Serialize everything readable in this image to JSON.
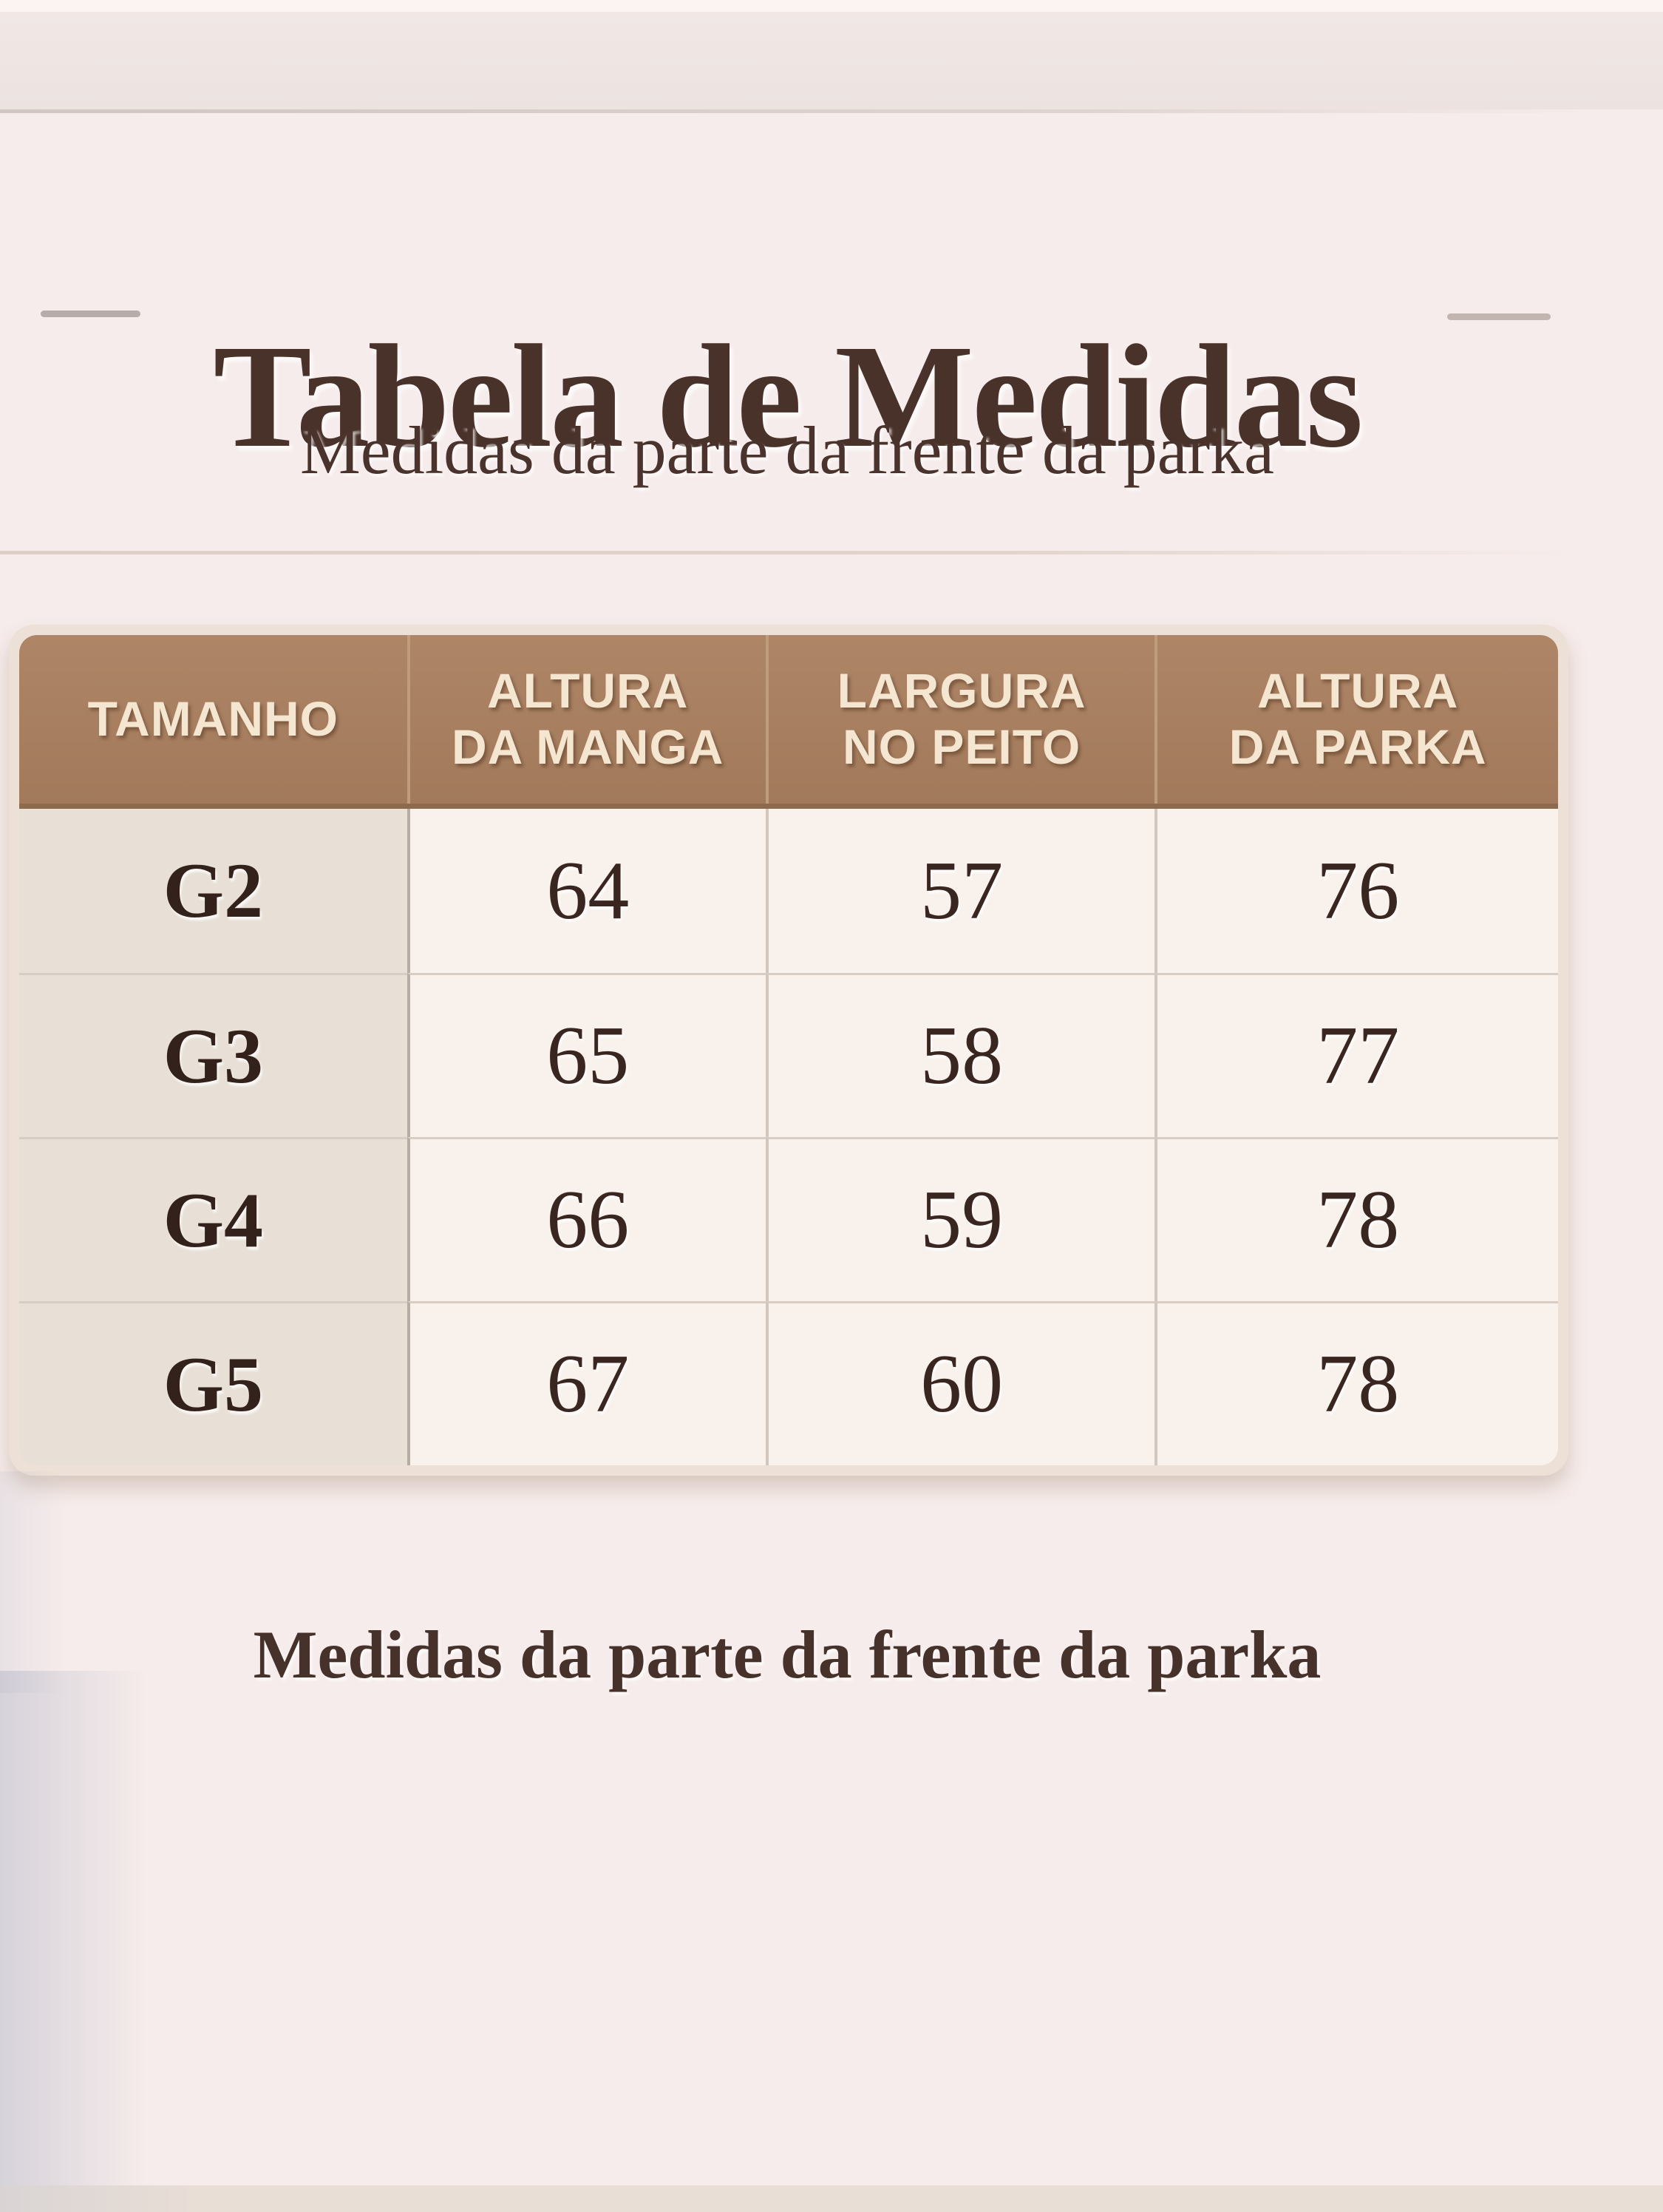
{
  "header": {
    "title": "Tabela de Medidas",
    "subtitle": "Medidas da parte da frente da parka"
  },
  "table": {
    "columns": [
      "TAMANHO",
      "ALTURA\nDA MANGA",
      "LARGURA\nNO PEITO",
      "ALTURA\nDA PARKA"
    ],
    "rows": [
      {
        "cells": [
          "G2",
          "64",
          "57",
          "76"
        ]
      },
      {
        "cells": [
          "G3",
          "65",
          "58",
          "77"
        ]
      },
      {
        "cells": [
          "G4",
          "66",
          "59",
          "78"
        ]
      },
      {
        "cells": [
          "G5",
          "67",
          "60",
          "78"
        ]
      }
    ]
  },
  "footer": {
    "note": "Medidas da parte da frente da parka"
  },
  "colors": {
    "page_bg": "#f6eceb",
    "title_brown": "#49322a",
    "header_bg": "#a98161",
    "header_text": "#f4e6d1",
    "size_col_bg": "#e8dfd6",
    "cell_bg": "#f8f1ec",
    "cell_text": "#3a2620",
    "table_border": "#ede1d7"
  }
}
